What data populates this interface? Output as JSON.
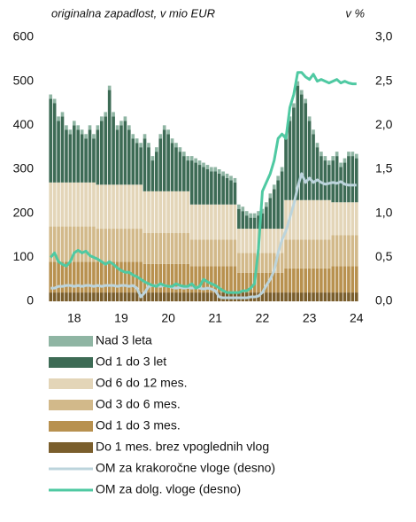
{
  "chart_data": {
    "type": "bar",
    "stacked": true,
    "subtitle_left": "originalna zapadlost, v mio EUR",
    "subtitle_right": "v %",
    "categories": [
      null,
      null,
      null,
      null,
      null,
      null,
      "18",
      null,
      null,
      null,
      null,
      null,
      null,
      null,
      null,
      null,
      null,
      null,
      "19",
      null,
      null,
      null,
      null,
      null,
      null,
      null,
      null,
      null,
      null,
      null,
      "20",
      null,
      null,
      null,
      null,
      null,
      null,
      null,
      null,
      null,
      null,
      null,
      "21",
      null,
      null,
      null,
      null,
      null,
      null,
      null,
      null,
      null,
      null,
      null,
      "22",
      null,
      null,
      null,
      null,
      null,
      null,
      null,
      null,
      null,
      null,
      null,
      "23",
      null,
      null,
      null,
      null,
      null,
      null,
      null,
      null,
      null,
      null,
      null,
      "24"
    ],
    "ylim": [
      0,
      600
    ],
    "yticks": [
      0,
      100,
      200,
      300,
      400,
      500,
      600
    ],
    "y2lim": [
      0,
      3
    ],
    "y2ticks": [
      {
        "value": 0,
        "label": "0,0"
      },
      {
        "value": 0.5,
        "label": "0,5"
      },
      {
        "value": 1,
        "label": "1,0"
      },
      {
        "value": 1.5,
        "label": "1,5"
      },
      {
        "value": 2,
        "label": "2,0"
      },
      {
        "value": 2.5,
        "label": "2,5"
      },
      {
        "value": 3,
        "label": "3,0"
      }
    ],
    "series": [
      {
        "name": "Nad 3 leta",
        "color": "#8fb5a3",
        "values": [
          10,
          10,
          10,
          10,
          10,
          10,
          10,
          10,
          10,
          10,
          10,
          10,
          10,
          10,
          10,
          10,
          10,
          10,
          10,
          10,
          10,
          10,
          10,
          10,
          10,
          10,
          10,
          10,
          10,
          10,
          10,
          10,
          10,
          10,
          10,
          10,
          10,
          10,
          10,
          10,
          10,
          10,
          10,
          10,
          10,
          10,
          10,
          10,
          10,
          10,
          10,
          10,
          10,
          10,
          10,
          10,
          10,
          10,
          10,
          10,
          10,
          10,
          10,
          10,
          10,
          10,
          10,
          10,
          10,
          10,
          10,
          10,
          10,
          10,
          10,
          10,
          10,
          10,
          10
        ]
      },
      {
        "name": "Od 1 do 3 let",
        "color": "#3d6b55",
        "values": [
          190,
          180,
          140,
          150,
          120,
          110,
          130,
          120,
          110,
          100,
          120,
          100,
          125,
          145,
          155,
          215,
          155,
          125,
          135,
          145,
          125,
          105,
          95,
          85,
          120,
          100,
          70,
          90,
          120,
          140,
          130,
          110,
          100,
          90,
          80,
          70,
          100,
          95,
          90,
          85,
          80,
          75,
          75,
          70,
          65,
          60,
          55,
          50,
          45,
          40,
          30,
          25,
          25,
          30,
          35,
          50,
          70,
          90,
          110,
          130,
          140,
          180,
          210,
          260,
          240,
          220,
          180,
          150,
          120,
          100,
          90,
          80,
          95,
          105,
          80,
          90,
          105,
          105,
          100
        ]
      },
      {
        "name": "Od 6 do 12 mes.",
        "color": "#e3d5b8",
        "values": [
          100,
          100,
          100,
          100,
          100,
          100,
          100,
          100,
          100,
          100,
          100,
          100,
          100,
          100,
          100,
          100,
          100,
          100,
          100,
          100,
          100,
          100,
          100,
          100,
          95,
          95,
          95,
          95,
          95,
          95,
          95,
          95,
          95,
          95,
          95,
          95,
          80,
          80,
          80,
          80,
          80,
          80,
          80,
          80,
          80,
          80,
          80,
          80,
          55,
          55,
          55,
          55,
          55,
          55,
          55,
          55,
          55,
          55,
          55,
          55,
          90,
          90,
          90,
          90,
          90,
          90,
          90,
          90,
          90,
          90,
          90,
          90,
          75,
          75,
          75,
          75,
          75,
          75,
          75
        ]
      },
      {
        "name": "Od 3 do 6 mes.",
        "color": "#d2b98a",
        "values": [
          80,
          80,
          80,
          80,
          80,
          80,
          80,
          80,
          80,
          80,
          80,
          80,
          75,
          75,
          75,
          75,
          75,
          75,
          75,
          75,
          75,
          75,
          75,
          75,
          70,
          70,
          70,
          70,
          70,
          70,
          70,
          70,
          70,
          70,
          70,
          70,
          60,
          60,
          60,
          60,
          60,
          60,
          60,
          60,
          60,
          60,
          60,
          60,
          45,
          45,
          45,
          45,
          45,
          45,
          45,
          45,
          45,
          45,
          45,
          45,
          65,
          65,
          65,
          65,
          65,
          65,
          65,
          65,
          65,
          65,
          65,
          65,
          70,
          70,
          70,
          70,
          70,
          70,
          70
        ]
      },
      {
        "name": "Od 1 do 3 mes.",
        "color": "#b8914f",
        "values": [
          70,
          70,
          70,
          70,
          70,
          70,
          70,
          70,
          70,
          70,
          70,
          70,
          70,
          70,
          70,
          70,
          70,
          70,
          70,
          70,
          70,
          70,
          70,
          70,
          65,
          65,
          65,
          65,
          65,
          65,
          65,
          65,
          65,
          65,
          65,
          65,
          60,
          60,
          60,
          60,
          60,
          60,
          60,
          60,
          60,
          60,
          60,
          60,
          45,
          45,
          45,
          45,
          45,
          45,
          45,
          45,
          45,
          45,
          45,
          45,
          55,
          55,
          55,
          55,
          55,
          55,
          55,
          55,
          55,
          55,
          55,
          55,
          60,
          60,
          60,
          60,
          60,
          60,
          60
        ]
      },
      {
        "name": "Do 1 mes. brez vpoglednih vlog",
        "color": "#7a5e2c",
        "values": [
          20,
          20,
          20,
          20,
          20,
          20,
          20,
          20,
          20,
          20,
          20,
          20,
          20,
          20,
          20,
          20,
          20,
          20,
          20,
          20,
          20,
          20,
          20,
          20,
          20,
          20,
          20,
          20,
          20,
          20,
          20,
          20,
          20,
          20,
          20,
          20,
          20,
          20,
          20,
          20,
          20,
          20,
          20,
          20,
          20,
          20,
          20,
          20,
          20,
          20,
          20,
          20,
          20,
          20,
          20,
          20,
          20,
          20,
          20,
          20,
          20,
          20,
          20,
          20,
          20,
          20,
          20,
          20,
          20,
          20,
          20,
          20,
          20,
          20,
          20,
          20,
          20,
          20,
          20
        ]
      },
      {
        "name": "OM za krakoročne vloge (desno)",
        "color": "#bcd4dc",
        "type": "line",
        "axis": "y2",
        "values": [
          0.15,
          0.15,
          0.17,
          0.17,
          0.18,
          0.18,
          0.17,
          0.18,
          0.17,
          0.18,
          0.18,
          0.17,
          0.18,
          0.17,
          0.18,
          0.18,
          0.18,
          0.17,
          0.18,
          0.18,
          0.17,
          0.18,
          0.15,
          0.05,
          0.1,
          0.17,
          0.18,
          0.18,
          0.17,
          0.18,
          0.17,
          0.16,
          0.15,
          0.16,
          0.15,
          0.16,
          0.15,
          0.16,
          0.15,
          0.14,
          0.15,
          0.14,
          0.12,
          0.05,
          0.04,
          0.04,
          0.04,
          0.04,
          0.04,
          0.04,
          0.04,
          0.05,
          0.05,
          0.06,
          0.1,
          0.18,
          0.25,
          0.35,
          0.55,
          0.7,
          0.8,
          0.95,
          1.1,
          1.3,
          1.45,
          1.35,
          1.4,
          1.35,
          1.38,
          1.35,
          1.33,
          1.34,
          1.35,
          1.34,
          1.36,
          1.33,
          1.32,
          1.32,
          1.32
        ]
      },
      {
        "name": "OM za dolg. vloge (desno)",
        "color": "#4fc9a2",
        "type": "line",
        "axis": "y2",
        "values": [
          0.5,
          0.55,
          0.45,
          0.42,
          0.4,
          0.45,
          0.55,
          0.58,
          0.55,
          0.57,
          0.52,
          0.5,
          0.48,
          0.45,
          0.42,
          0.45,
          0.42,
          0.38,
          0.35,
          0.33,
          0.33,
          0.3,
          0.28,
          0.25,
          0.22,
          0.2,
          0.18,
          0.17,
          0.2,
          0.18,
          0.17,
          0.17,
          0.2,
          0.18,
          0.17,
          0.17,
          0.2,
          0.15,
          0.17,
          0.25,
          0.22,
          0.2,
          0.18,
          0.15,
          0.12,
          0.1,
          0.1,
          0.1,
          0.1,
          0.12,
          0.12,
          0.15,
          0.2,
          0.6,
          1.25,
          1.35,
          1.45,
          1.6,
          1.85,
          1.9,
          1.85,
          2.2,
          2.35,
          2.6,
          2.6,
          2.55,
          2.52,
          2.58,
          2.5,
          2.52,
          2.5,
          2.48,
          2.5,
          2.52,
          2.48,
          2.5,
          2.48,
          2.47,
          2.47
        ]
      }
    ]
  }
}
